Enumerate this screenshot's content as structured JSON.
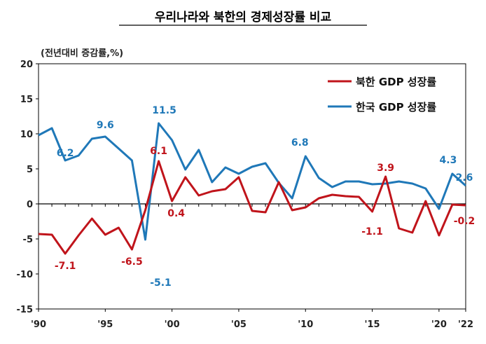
{
  "chart_data": {
    "type": "line",
    "title": "우리나라와 북한의 경제성장률 비교",
    "unit_label": "(전년대비 증감률,%)",
    "ylim": [
      -15,
      20
    ],
    "yticks": [
      20,
      15,
      10,
      5,
      0,
      -5,
      -10,
      -15
    ],
    "ytick_labels": [
      "20",
      "15",
      "10",
      "5",
      "0",
      "-5",
      "-10",
      "-15"
    ],
    "x": [
      1990,
      1991,
      1992,
      1993,
      1994,
      1995,
      1996,
      1997,
      1998,
      1999,
      2000,
      2001,
      2002,
      2003,
      2004,
      2005,
      2006,
      2007,
      2008,
      2009,
      2010,
      2011,
      2012,
      2013,
      2014,
      2015,
      2016,
      2017,
      2018,
      2019,
      2020,
      2021,
      2022
    ],
    "xticks": [
      1990,
      1995,
      2000,
      2005,
      2010,
      2015,
      2020,
      2022
    ],
    "xtick_labels": [
      "'90",
      "'95",
      "'00",
      "'05",
      "'10",
      "'15",
      "'20",
      "'22"
    ],
    "series": [
      {
        "name": "북한 GDP 성장률",
        "color": "#c0141b",
        "values": [
          -4.3,
          -4.4,
          -7.1,
          -4.5,
          -2.1,
          -4.4,
          -3.4,
          -6.5,
          -0.9,
          6.1,
          0.4,
          3.8,
          1.2,
          1.8,
          2.1,
          3.8,
          -1.0,
          -1.2,
          3.1,
          -0.9,
          -0.5,
          0.8,
          1.3,
          1.1,
          1.0,
          -1.1,
          3.9,
          -3.5,
          -4.1,
          0.4,
          -4.5,
          -0.1,
          -0.2
        ],
        "labels": [
          {
            "index": 2,
            "text": "-7.1"
          },
          {
            "index": 7,
            "text": "-6.5"
          },
          {
            "index": 9,
            "text": "6.1"
          },
          {
            "index": 10,
            "text": "0.4"
          },
          {
            "index": 25,
            "text": "-1.1"
          },
          {
            "index": 26,
            "text": "3.9"
          },
          {
            "index": 32,
            "text": "-0.2"
          }
        ]
      },
      {
        "name": "한국 GDP 성장률",
        "color": "#1f78b8",
        "values": [
          9.8,
          10.8,
          6.2,
          6.9,
          9.3,
          9.6,
          7.9,
          6.2,
          -5.1,
          11.5,
          9.1,
          4.9,
          7.7,
          3.1,
          5.2,
          4.3,
          5.3,
          5.8,
          3.0,
          0.8,
          6.8,
          3.7,
          2.4,
          3.2,
          3.2,
          2.8,
          2.9,
          3.2,
          2.9,
          2.2,
          -0.7,
          4.3,
          2.6
        ],
        "labels": [
          {
            "index": 2,
            "text": "6.2"
          },
          {
            "index": 5,
            "text": "9.6"
          },
          {
            "index": 8,
            "text": "-5.1"
          },
          {
            "index": 9,
            "text": "11.5"
          },
          {
            "index": 20,
            "text": "6.8"
          },
          {
            "index": 31,
            "text": "4.3"
          },
          {
            "index": 32,
            "text": "2.6"
          }
        ]
      }
    ],
    "legend_position": "top-right",
    "grid": false
  }
}
